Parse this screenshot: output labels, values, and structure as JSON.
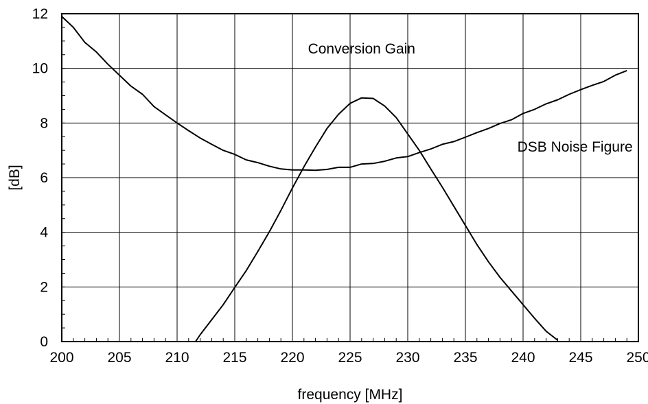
{
  "chart_data": {
    "type": "line",
    "title": "",
    "xlabel": "frequency [MHz]",
    "ylabel": "[dB]",
    "xlim": [
      200,
      250
    ],
    "ylim": [
      0,
      12
    ],
    "x_ticks": [
      200,
      205,
      210,
      215,
      220,
      225,
      230,
      235,
      240,
      245,
      250
    ],
    "y_ticks": [
      0,
      2,
      4,
      6,
      8,
      10,
      12
    ],
    "grid": true,
    "legend": "none",
    "annotations": [
      {
        "text": "Conversion Gain",
        "x": 226,
        "y": 10.55
      },
      {
        "text": "DSB Noise Figure",
        "x": 244.5,
        "y": 6.95
      }
    ],
    "series": [
      {
        "x": [
          200,
          201,
          202,
          203,
          204,
          205,
          206,
          207,
          208,
          209,
          210,
          211,
          212,
          213,
          214,
          215,
          216,
          217,
          218,
          219,
          220,
          221,
          222,
          223,
          224,
          225,
          226,
          227,
          228,
          229,
          230,
          231,
          232,
          233,
          234,
          235,
          236,
          237,
          238,
          239,
          240,
          241,
          242,
          243,
          244,
          245,
          246,
          247,
          248,
          249
        ],
        "values": [
          11.9,
          11.5,
          10.95,
          10.6,
          10.15,
          9.75,
          9.35,
          9.05,
          8.6,
          8.3,
          8.0,
          7.72,
          7.45,
          7.22,
          7.0,
          6.85,
          6.65,
          6.55,
          6.42,
          6.32,
          6.28,
          6.28,
          6.27,
          6.3,
          6.38,
          6.38,
          6.5,
          6.52,
          6.6,
          6.72,
          6.77,
          6.92,
          7.05,
          7.22,
          7.32,
          7.48,
          7.65,
          7.8,
          7.98,
          8.12,
          8.35,
          8.5,
          8.7,
          8.85,
          9.05,
          9.22,
          9.38,
          9.52,
          9.75,
          9.92
        ]
      },
      {
        "x": [
          211.6,
          212,
          213,
          214,
          215,
          216,
          217,
          218,
          219,
          220,
          221,
          222,
          223,
          224,
          225,
          226,
          227,
          228,
          229,
          230,
          231,
          232,
          233,
          234,
          235,
          236,
          237,
          238,
          239,
          240,
          241,
          242,
          243
        ],
        "values": [
          0,
          0.25,
          0.8,
          1.35,
          1.98,
          2.6,
          3.3,
          4.02,
          4.8,
          5.62,
          6.4,
          7.12,
          7.8,
          8.32,
          8.72,
          8.92,
          8.9,
          8.62,
          8.2,
          7.6,
          7.0,
          6.32,
          5.65,
          4.95,
          4.25,
          3.55,
          2.92,
          2.35,
          1.85,
          1.35,
          0.85,
          0.38,
          0.05
        ]
      }
    ]
  }
}
